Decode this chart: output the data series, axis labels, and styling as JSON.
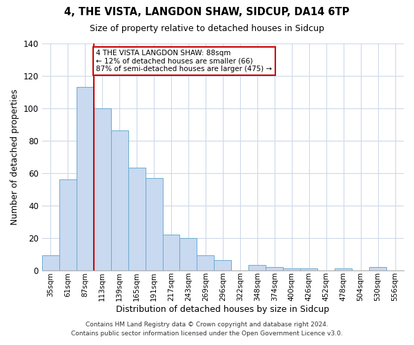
{
  "title": "4, THE VISTA, LANGDON SHAW, SIDCUP, DA14 6TP",
  "subtitle": "Size of property relative to detached houses in Sidcup",
  "xlabel": "Distribution of detached houses by size in Sidcup",
  "ylabel": "Number of detached properties",
  "bin_labels": [
    "35sqm",
    "61sqm",
    "87sqm",
    "113sqm",
    "139sqm",
    "165sqm",
    "191sqm",
    "217sqm",
    "243sqm",
    "269sqm",
    "296sqm",
    "322sqm",
    "348sqm",
    "374sqm",
    "400sqm",
    "426sqm",
    "452sqm",
    "478sqm",
    "504sqm",
    "530sqm",
    "556sqm"
  ],
  "bar_heights": [
    9,
    56,
    113,
    100,
    86,
    63,
    57,
    22,
    20,
    9,
    6,
    0,
    3,
    2,
    1,
    1,
    0,
    1,
    0,
    2,
    0
  ],
  "bar_color": "#c8d9f0",
  "bar_edge_color": "#6baad0",
  "vline_color": "#cc0000",
  "vline_bin_index": 2,
  "ylim": [
    0,
    140
  ],
  "yticks": [
    0,
    20,
    40,
    60,
    80,
    100,
    120,
    140
  ],
  "annotation_text": "4 THE VISTA LANGDON SHAW: 88sqm\n← 12% of detached houses are smaller (66)\n87% of semi-detached houses are larger (475) →",
  "annotation_box_edge": "#cc0000",
  "footnote1": "Contains HM Land Registry data © Crown copyright and database right 2024.",
  "footnote2": "Contains public sector information licensed under the Open Government Licence v3.0.",
  "background_color": "#ffffff",
  "grid_color": "#ccd8e8"
}
